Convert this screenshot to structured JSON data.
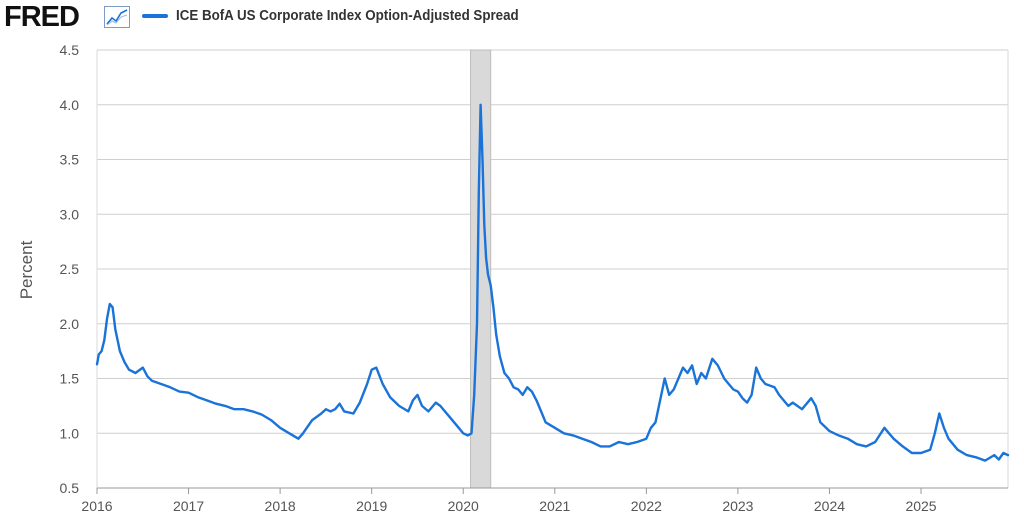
{
  "header": {
    "logo_text": "FRED",
    "logo_icon": "line-chart-icon",
    "legend_label": "ICE BofA US Corporate Index Option-Adjusted Spread",
    "series_color": "#1a73d8"
  },
  "chart_data": {
    "type": "line",
    "title": "ICE BofA US Corporate Index Option-Adjusted Spread",
    "xlabel": "",
    "ylabel": "Percent",
    "xlim": [
      2016.0,
      2025.95
    ],
    "ylim": [
      0.5,
      4.5
    ],
    "y_ticks": [
      "0.5",
      "1.0",
      "1.5",
      "2.0",
      "2.5",
      "3.0",
      "3.5",
      "4.0",
      "4.5"
    ],
    "y_tick_values": [
      0.5,
      1.0,
      1.5,
      2.0,
      2.5,
      3.0,
      3.5,
      4.0,
      4.5
    ],
    "x_ticks": [
      "2016",
      "2017",
      "2018",
      "2019",
      "2020",
      "2021",
      "2022",
      "2023",
      "2024",
      "2025"
    ],
    "x_tick_values": [
      2016,
      2017,
      2018,
      2019,
      2020,
      2021,
      2022,
      2023,
      2024,
      2025
    ],
    "grid": true,
    "recession_shading": [
      {
        "start": 2020.08,
        "end": 2020.3
      }
    ],
    "series": [
      {
        "name": "ICE BofA US Corporate Index Option-Adjusted Spread",
        "color": "#1a73d8",
        "points": [
          [
            2016.0,
            1.63
          ],
          [
            2016.02,
            1.72
          ],
          [
            2016.05,
            1.75
          ],
          [
            2016.08,
            1.85
          ],
          [
            2016.11,
            2.05
          ],
          [
            2016.14,
            2.18
          ],
          [
            2016.17,
            2.15
          ],
          [
            2016.2,
            1.95
          ],
          [
            2016.25,
            1.75
          ],
          [
            2016.3,
            1.65
          ],
          [
            2016.35,
            1.58
          ],
          [
            2016.42,
            1.55
          ],
          [
            2016.5,
            1.6
          ],
          [
            2016.55,
            1.52
          ],
          [
            2016.6,
            1.48
          ],
          [
            2016.7,
            1.45
          ],
          [
            2016.8,
            1.42
          ],
          [
            2016.9,
            1.38
          ],
          [
            2017.0,
            1.37
          ],
          [
            2017.1,
            1.33
          ],
          [
            2017.2,
            1.3
          ],
          [
            2017.3,
            1.27
          ],
          [
            2017.4,
            1.25
          ],
          [
            2017.5,
            1.22
          ],
          [
            2017.6,
            1.22
          ],
          [
            2017.7,
            1.2
          ],
          [
            2017.8,
            1.17
          ],
          [
            2017.9,
            1.12
          ],
          [
            2018.0,
            1.05
          ],
          [
            2018.1,
            1.0
          ],
          [
            2018.2,
            0.95
          ],
          [
            2018.25,
            1.0
          ],
          [
            2018.35,
            1.12
          ],
          [
            2018.45,
            1.18
          ],
          [
            2018.5,
            1.22
          ],
          [
            2018.55,
            1.2
          ],
          [
            2018.6,
            1.22
          ],
          [
            2018.65,
            1.27
          ],
          [
            2018.7,
            1.2
          ],
          [
            2018.8,
            1.18
          ],
          [
            2018.87,
            1.28
          ],
          [
            2018.95,
            1.45
          ],
          [
            2019.0,
            1.58
          ],
          [
            2019.05,
            1.6
          ],
          [
            2019.12,
            1.45
          ],
          [
            2019.2,
            1.33
          ],
          [
            2019.3,
            1.25
          ],
          [
            2019.4,
            1.2
          ],
          [
            2019.45,
            1.3
          ],
          [
            2019.5,
            1.35
          ],
          [
            2019.55,
            1.25
          ],
          [
            2019.62,
            1.2
          ],
          [
            2019.7,
            1.28
          ],
          [
            2019.75,
            1.25
          ],
          [
            2019.85,
            1.15
          ],
          [
            2019.95,
            1.05
          ],
          [
            2020.0,
            1.0
          ],
          [
            2020.05,
            0.98
          ],
          [
            2020.09,
            1.0
          ],
          [
            2020.12,
            1.35
          ],
          [
            2020.15,
            2.0
          ],
          [
            2020.17,
            3.2
          ],
          [
            2020.19,
            4.0
          ],
          [
            2020.21,
            3.5
          ],
          [
            2020.23,
            2.9
          ],
          [
            2020.25,
            2.6
          ],
          [
            2020.27,
            2.45
          ],
          [
            2020.3,
            2.35
          ],
          [
            2020.33,
            2.15
          ],
          [
            2020.36,
            1.9
          ],
          [
            2020.4,
            1.7
          ],
          [
            2020.45,
            1.55
          ],
          [
            2020.5,
            1.5
          ],
          [
            2020.55,
            1.42
          ],
          [
            2020.6,
            1.4
          ],
          [
            2020.65,
            1.35
          ],
          [
            2020.7,
            1.42
          ],
          [
            2020.75,
            1.38
          ],
          [
            2020.8,
            1.3
          ],
          [
            2020.85,
            1.2
          ],
          [
            2020.9,
            1.1
          ],
          [
            2021.0,
            1.05
          ],
          [
            2021.1,
            1.0
          ],
          [
            2021.2,
            0.98
          ],
          [
            2021.3,
            0.95
          ],
          [
            2021.4,
            0.92
          ],
          [
            2021.5,
            0.88
          ],
          [
            2021.6,
            0.88
          ],
          [
            2021.7,
            0.92
          ],
          [
            2021.8,
            0.9
          ],
          [
            2021.9,
            0.92
          ],
          [
            2022.0,
            0.95
          ],
          [
            2022.05,
            1.05
          ],
          [
            2022.1,
            1.1
          ],
          [
            2022.15,
            1.3
          ],
          [
            2022.2,
            1.5
          ],
          [
            2022.25,
            1.35
          ],
          [
            2022.3,
            1.4
          ],
          [
            2022.35,
            1.5
          ],
          [
            2022.4,
            1.6
          ],
          [
            2022.45,
            1.55
          ],
          [
            2022.5,
            1.62
          ],
          [
            2022.55,
            1.45
          ],
          [
            2022.6,
            1.55
          ],
          [
            2022.65,
            1.5
          ],
          [
            2022.72,
            1.68
          ],
          [
            2022.78,
            1.62
          ],
          [
            2022.85,
            1.5
          ],
          [
            2022.9,
            1.45
          ],
          [
            2022.95,
            1.4
          ],
          [
            2023.0,
            1.38
          ],
          [
            2023.05,
            1.32
          ],
          [
            2023.1,
            1.28
          ],
          [
            2023.15,
            1.35
          ],
          [
            2023.2,
            1.6
          ],
          [
            2023.25,
            1.5
          ],
          [
            2023.3,
            1.45
          ],
          [
            2023.4,
            1.42
          ],
          [
            2023.45,
            1.35
          ],
          [
            2023.5,
            1.3
          ],
          [
            2023.55,
            1.25
          ],
          [
            2023.6,
            1.28
          ],
          [
            2023.7,
            1.22
          ],
          [
            2023.8,
            1.32
          ],
          [
            2023.85,
            1.25
          ],
          [
            2023.9,
            1.1
          ],
          [
            2024.0,
            1.02
          ],
          [
            2024.1,
            0.98
          ],
          [
            2024.2,
            0.95
          ],
          [
            2024.3,
            0.9
          ],
          [
            2024.4,
            0.88
          ],
          [
            2024.5,
            0.92
          ],
          [
            2024.6,
            1.05
          ],
          [
            2024.65,
            1.0
          ],
          [
            2024.7,
            0.95
          ],
          [
            2024.8,
            0.88
          ],
          [
            2024.9,
            0.82
          ],
          [
            2025.0,
            0.82
          ],
          [
            2025.1,
            0.85
          ],
          [
            2025.15,
            1.0
          ],
          [
            2025.2,
            1.18
          ],
          [
            2025.25,
            1.05
          ],
          [
            2025.3,
            0.95
          ],
          [
            2025.4,
            0.85
          ],
          [
            2025.5,
            0.8
          ],
          [
            2025.6,
            0.78
          ],
          [
            2025.7,
            0.75
          ],
          [
            2025.8,
            0.8
          ],
          [
            2025.85,
            0.76
          ],
          [
            2025.9,
            0.82
          ],
          [
            2025.95,
            0.8
          ]
        ]
      }
    ]
  }
}
